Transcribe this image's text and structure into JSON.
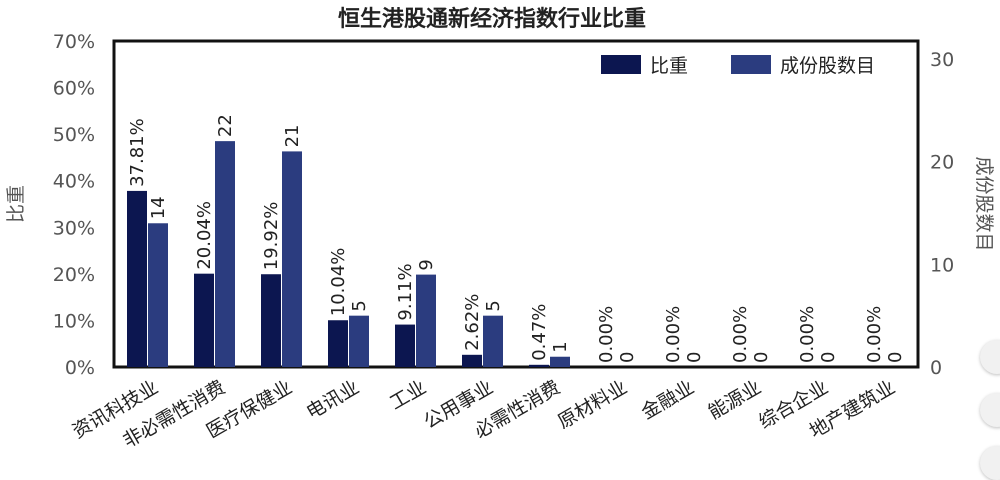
{
  "chart_data": {
    "type": "bar",
    "title": "恒生港股通新经济指数行业比重",
    "ylabel": "比重",
    "y2label": "成份股数目",
    "categories": [
      "资讯科技业",
      "非必需性消费",
      "医疗保健业",
      "电讯业",
      "工业",
      "公用事业",
      "必需性消费",
      "原材料业",
      "金融业",
      "能源业",
      "综合企业",
      "地产建筑业"
    ],
    "series": [
      {
        "name": "比重",
        "axis": "left",
        "color": "#0c1650",
        "values": [
          37.81,
          20.04,
          19.92,
          10.04,
          9.11,
          2.62,
          0.47,
          0.0,
          0.0,
          0.0,
          0.0,
          0.0
        ],
        "labels": [
          "37.81%",
          "20.04%",
          "19.92%",
          "10.04%",
          "9.11%",
          "2.62%",
          "0.47%",
          "0.00%",
          "0.00%",
          "0.00%",
          "0.00%",
          "0.00%"
        ]
      },
      {
        "name": "成份股数目",
        "axis": "right",
        "color": "#2b3c7f",
        "values": [
          14,
          22,
          21,
          5,
          9,
          5,
          1,
          0,
          0,
          0,
          0,
          0
        ],
        "labels": [
          "14",
          "22",
          "21",
          "5",
          "9",
          "5",
          "1",
          "0",
          "0",
          "0",
          "0",
          "0"
        ]
      }
    ],
    "ylim": [
      0,
      70
    ],
    "yticks": [
      "0%",
      "10%",
      "20%",
      "30%",
      "40%",
      "50%",
      "60%",
      "70%"
    ],
    "y2lim": [
      0,
      30
    ],
    "y2ticks": [
      "0",
      "10",
      "20",
      "30"
    ],
    "legend_position": "top-right",
    "grid": false
  }
}
